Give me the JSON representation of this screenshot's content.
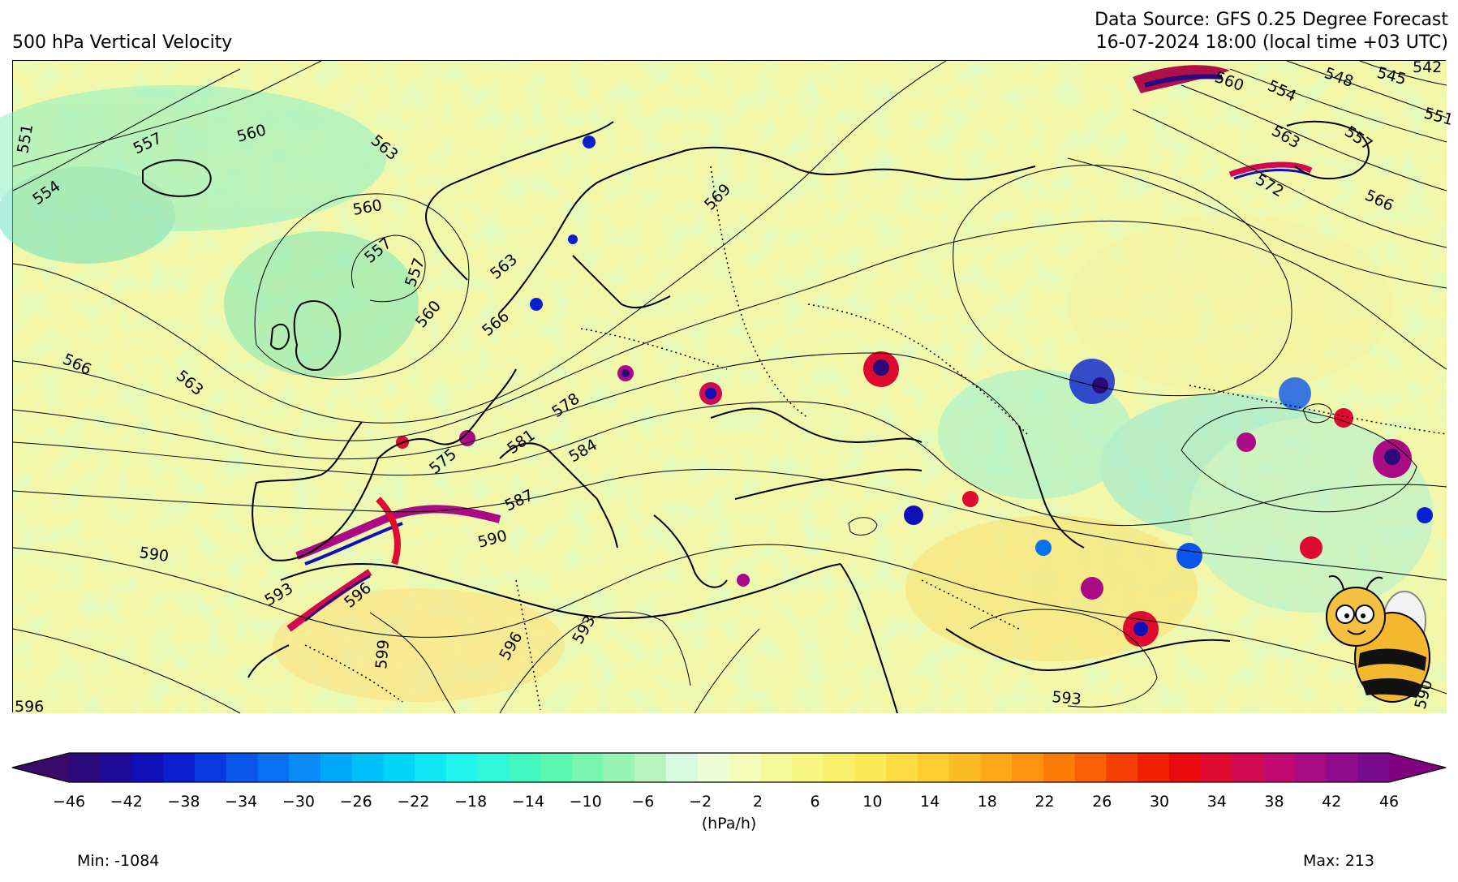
{
  "header": {
    "title_left": "500 hPa Vertical Velocity",
    "source_line": "Data Source: GFS 0.25 Degree Forecast",
    "time_line": "16-07-2024 18:00 (local time +03 UTC)"
  },
  "colorbar": {
    "unit": "(hPa/h)",
    "ticks": [
      "−46",
      "−42",
      "−38",
      "−34",
      "−30",
      "−26",
      "−22",
      "−18",
      "−14",
      "−10",
      "−6",
      "−2",
      "2",
      "6",
      "10",
      "14",
      "18",
      "22",
      "26",
      "30",
      "34",
      "38",
      "42",
      "46"
    ],
    "colors": [
      "#2a0a7a",
      "#200a9a",
      "#1010b8",
      "#0a20d0",
      "#0838e0",
      "#0a55ea",
      "#0a70f2",
      "#0a8cf8",
      "#00a8fa",
      "#00c0fa",
      "#00d5f8",
      "#10e6f4",
      "#20f4ec",
      "#30f8d8",
      "#40f8c0",
      "#58f8b0",
      "#78f6b0",
      "#98f4b4",
      "#b8f4c0",
      "#d8fae0",
      "#eefcd8",
      "#f4fcb8",
      "#f4fa9c",
      "#f6f680",
      "#f8f068",
      "#fae854",
      "#fcdc40",
      "#fccc30",
      "#fcbc24",
      "#fca818",
      "#fc9410",
      "#fc7c08",
      "#f86004",
      "#f44004",
      "#f02004",
      "#ea0a10",
      "#e00a30",
      "#d00a50",
      "#c00a70",
      "#aa0a84",
      "#900a8c",
      "#780a8c"
    ],
    "extend_left": "#3a0a6a",
    "extend_right": "#800080"
  },
  "stats": {
    "min_label": "Min: -1084",
    "max_label": "Max: 213"
  },
  "contour_labels": [
    "551",
    "554",
    "557",
    "560",
    "563",
    "560",
    "557",
    "557",
    "560",
    "566",
    "563",
    "563",
    "566",
    "569",
    "575",
    "578",
    "581",
    "584",
    "587",
    "590",
    "590",
    "593",
    "596",
    "599",
    "596",
    "593",
    "593",
    "596",
    "590",
    "560",
    "554",
    "548",
    "545",
    "542",
    "551",
    "563",
    "557",
    "572",
    "566"
  ],
  "colors": {
    "background": "#f4f7a8",
    "contour": "#000000",
    "coastline": "#000000"
  },
  "logo": "bee-mascot"
}
